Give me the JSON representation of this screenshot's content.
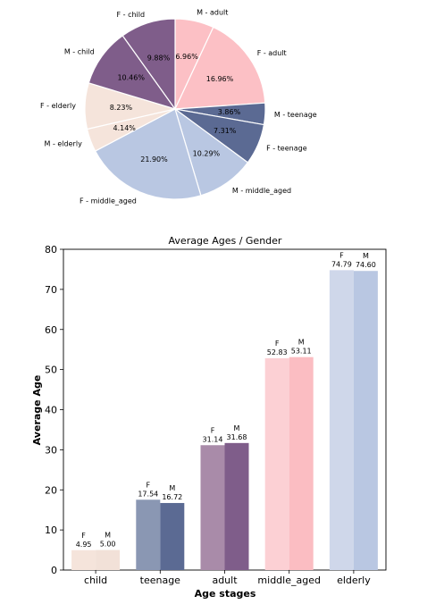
{
  "chart_data": [
    {
      "type": "pie",
      "title": "",
      "slices": [
        {
          "label": "M - adult",
          "percent": 6.96,
          "color": "#fcc0c5"
        },
        {
          "label": "F - adult",
          "percent": 16.96,
          "color": "#fcc0c5"
        },
        {
          "label": "M - teenage",
          "percent": 3.86,
          "color": "#5b6a93"
        },
        {
          "label": "F - teenage",
          "percent": 7.31,
          "color": "#5b6a93"
        },
        {
          "label": "M - middle_aged",
          "percent": 10.29,
          "color": "#b9c7e2"
        },
        {
          "label": "F - middle_aged",
          "percent": 21.9,
          "color": "#b9c7e2"
        },
        {
          "label": "M - elderly",
          "percent": 4.14,
          "color": "#f5e4db"
        },
        {
          "label": "F - elderly",
          "percent": 8.23,
          "color": "#f5e4db"
        },
        {
          "label": "M - child",
          "percent": 10.46,
          "color": "#7f5d8a"
        },
        {
          "label": "F - child",
          "percent": 9.88,
          "color": "#7f5d8a"
        }
      ]
    },
    {
      "type": "bar",
      "title": "Average Ages / Gender",
      "xlabel": "Age stages",
      "ylabel": "Average Age",
      "ylim": [
        0,
        80
      ],
      "yticks": [
        0,
        10,
        20,
        30,
        40,
        50,
        60,
        70,
        80
      ],
      "categories": [
        "child",
        "teenage",
        "adult",
        "middle_aged",
        "elderly"
      ],
      "series": [
        {
          "name": "F",
          "values": [
            4.95,
            17.54,
            31.14,
            52.83,
            74.79
          ],
          "value_labels": [
            "4.95",
            "17.54",
            "31.14",
            "52.83",
            "74.79"
          ]
        },
        {
          "name": "M",
          "values": [
            5.0,
            16.72,
            31.68,
            53.11,
            74.6
          ],
          "value_labels": [
            "5.00",
            "16.72",
            "31.68",
            "53.11",
            "74.60"
          ]
        }
      ],
      "colors": {
        "F": [
          "#f5e4db",
          "#8a97b3",
          "#a98ba9",
          "#fcd0d4",
          "#cfd7ea"
        ],
        "M": [
          "#f2e1d8",
          "#5b6a93",
          "#7f5d8a",
          "#fbbdc2",
          "#b9c7e2"
        ]
      }
    }
  ]
}
